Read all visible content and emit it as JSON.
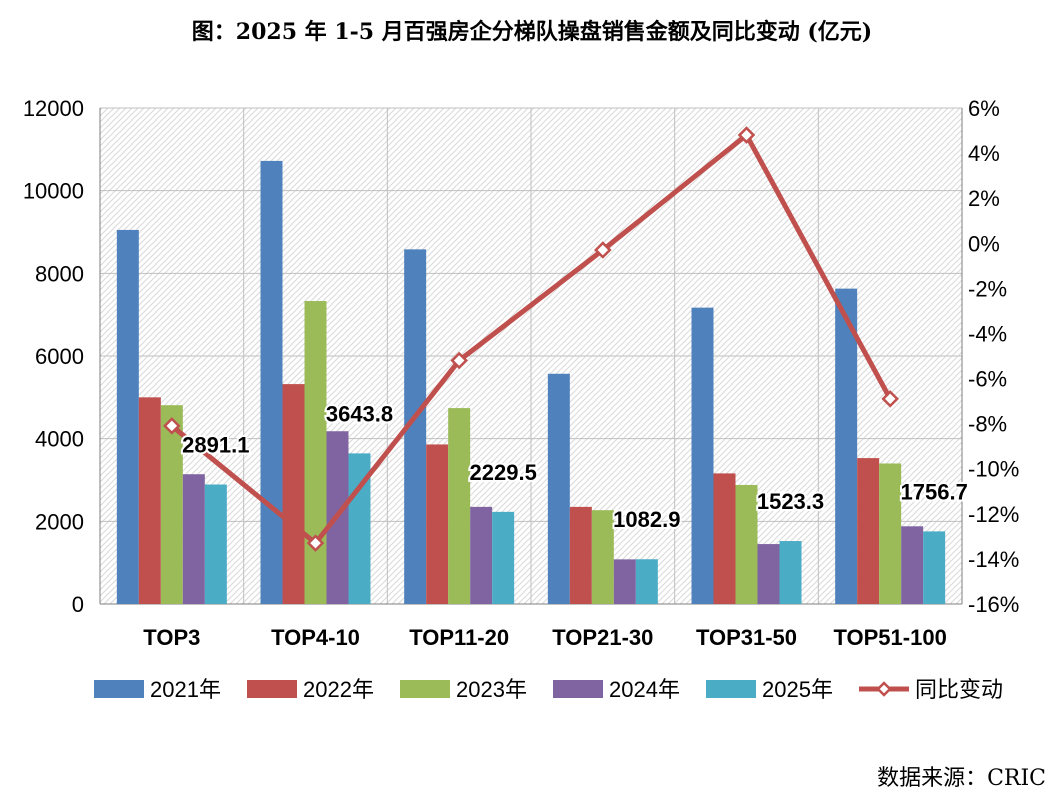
{
  "page": {
    "title": "图：2025 年 1-5 月百强房企分梯队操盘销售金额及同比变动 (亿元)",
    "source": "数据来源：CRIC"
  },
  "chart_data": {
    "type": "bar",
    "categories": [
      "TOP3",
      "TOP4-10",
      "TOP11-20",
      "TOP21-30",
      "TOP31-50",
      "TOP51-100"
    ],
    "series": [
      {
        "name": "2021年",
        "color": "#4F81BD",
        "values": [
          9050,
          10720,
          8580,
          5570,
          7170,
          7630
        ]
      },
      {
        "name": "2022年",
        "color": "#C0504D",
        "values": [
          5000,
          5320,
          3860,
          2350,
          3160,
          3530
        ]
      },
      {
        "name": "2023年",
        "color": "#9BBB59",
        "values": [
          4810,
          7330,
          4740,
          2270,
          2880,
          3400
        ]
      },
      {
        "name": "2024年",
        "color": "#8064A2",
        "values": [
          3140,
          4180,
          2350,
          1080,
          1450,
          1880
        ]
      },
      {
        "name": "2025年",
        "color": "#4BACC6",
        "values": [
          2891.1,
          3643.8,
          2229.5,
          1082.9,
          1523.3,
          1756.7
        ]
      }
    ],
    "line_series": {
      "name": "同比变动",
      "color": "#C0504D",
      "values": [
        -8.1,
        -13.3,
        -5.2,
        -0.3,
        4.8,
        -6.9
      ]
    },
    "data_labels": [
      "2891.1",
      "3643.8",
      "2229.5",
      "1082.9",
      "1523.3",
      "1756.7"
    ],
    "y_left": {
      "min": 0,
      "max": 12000,
      "ticks": [
        "0",
        "2000",
        "4000",
        "6000",
        "8000",
        "10000",
        "12000"
      ]
    },
    "y_right": {
      "min": -16,
      "max": 6,
      "ticks": [
        "-16%",
        "-14%",
        "-12%",
        "-10%",
        "-8%",
        "-6%",
        "-4%",
        "-2%",
        "0%",
        "2%",
        "4%",
        "6%"
      ]
    },
    "grid": true,
    "legend": "bottom"
  }
}
